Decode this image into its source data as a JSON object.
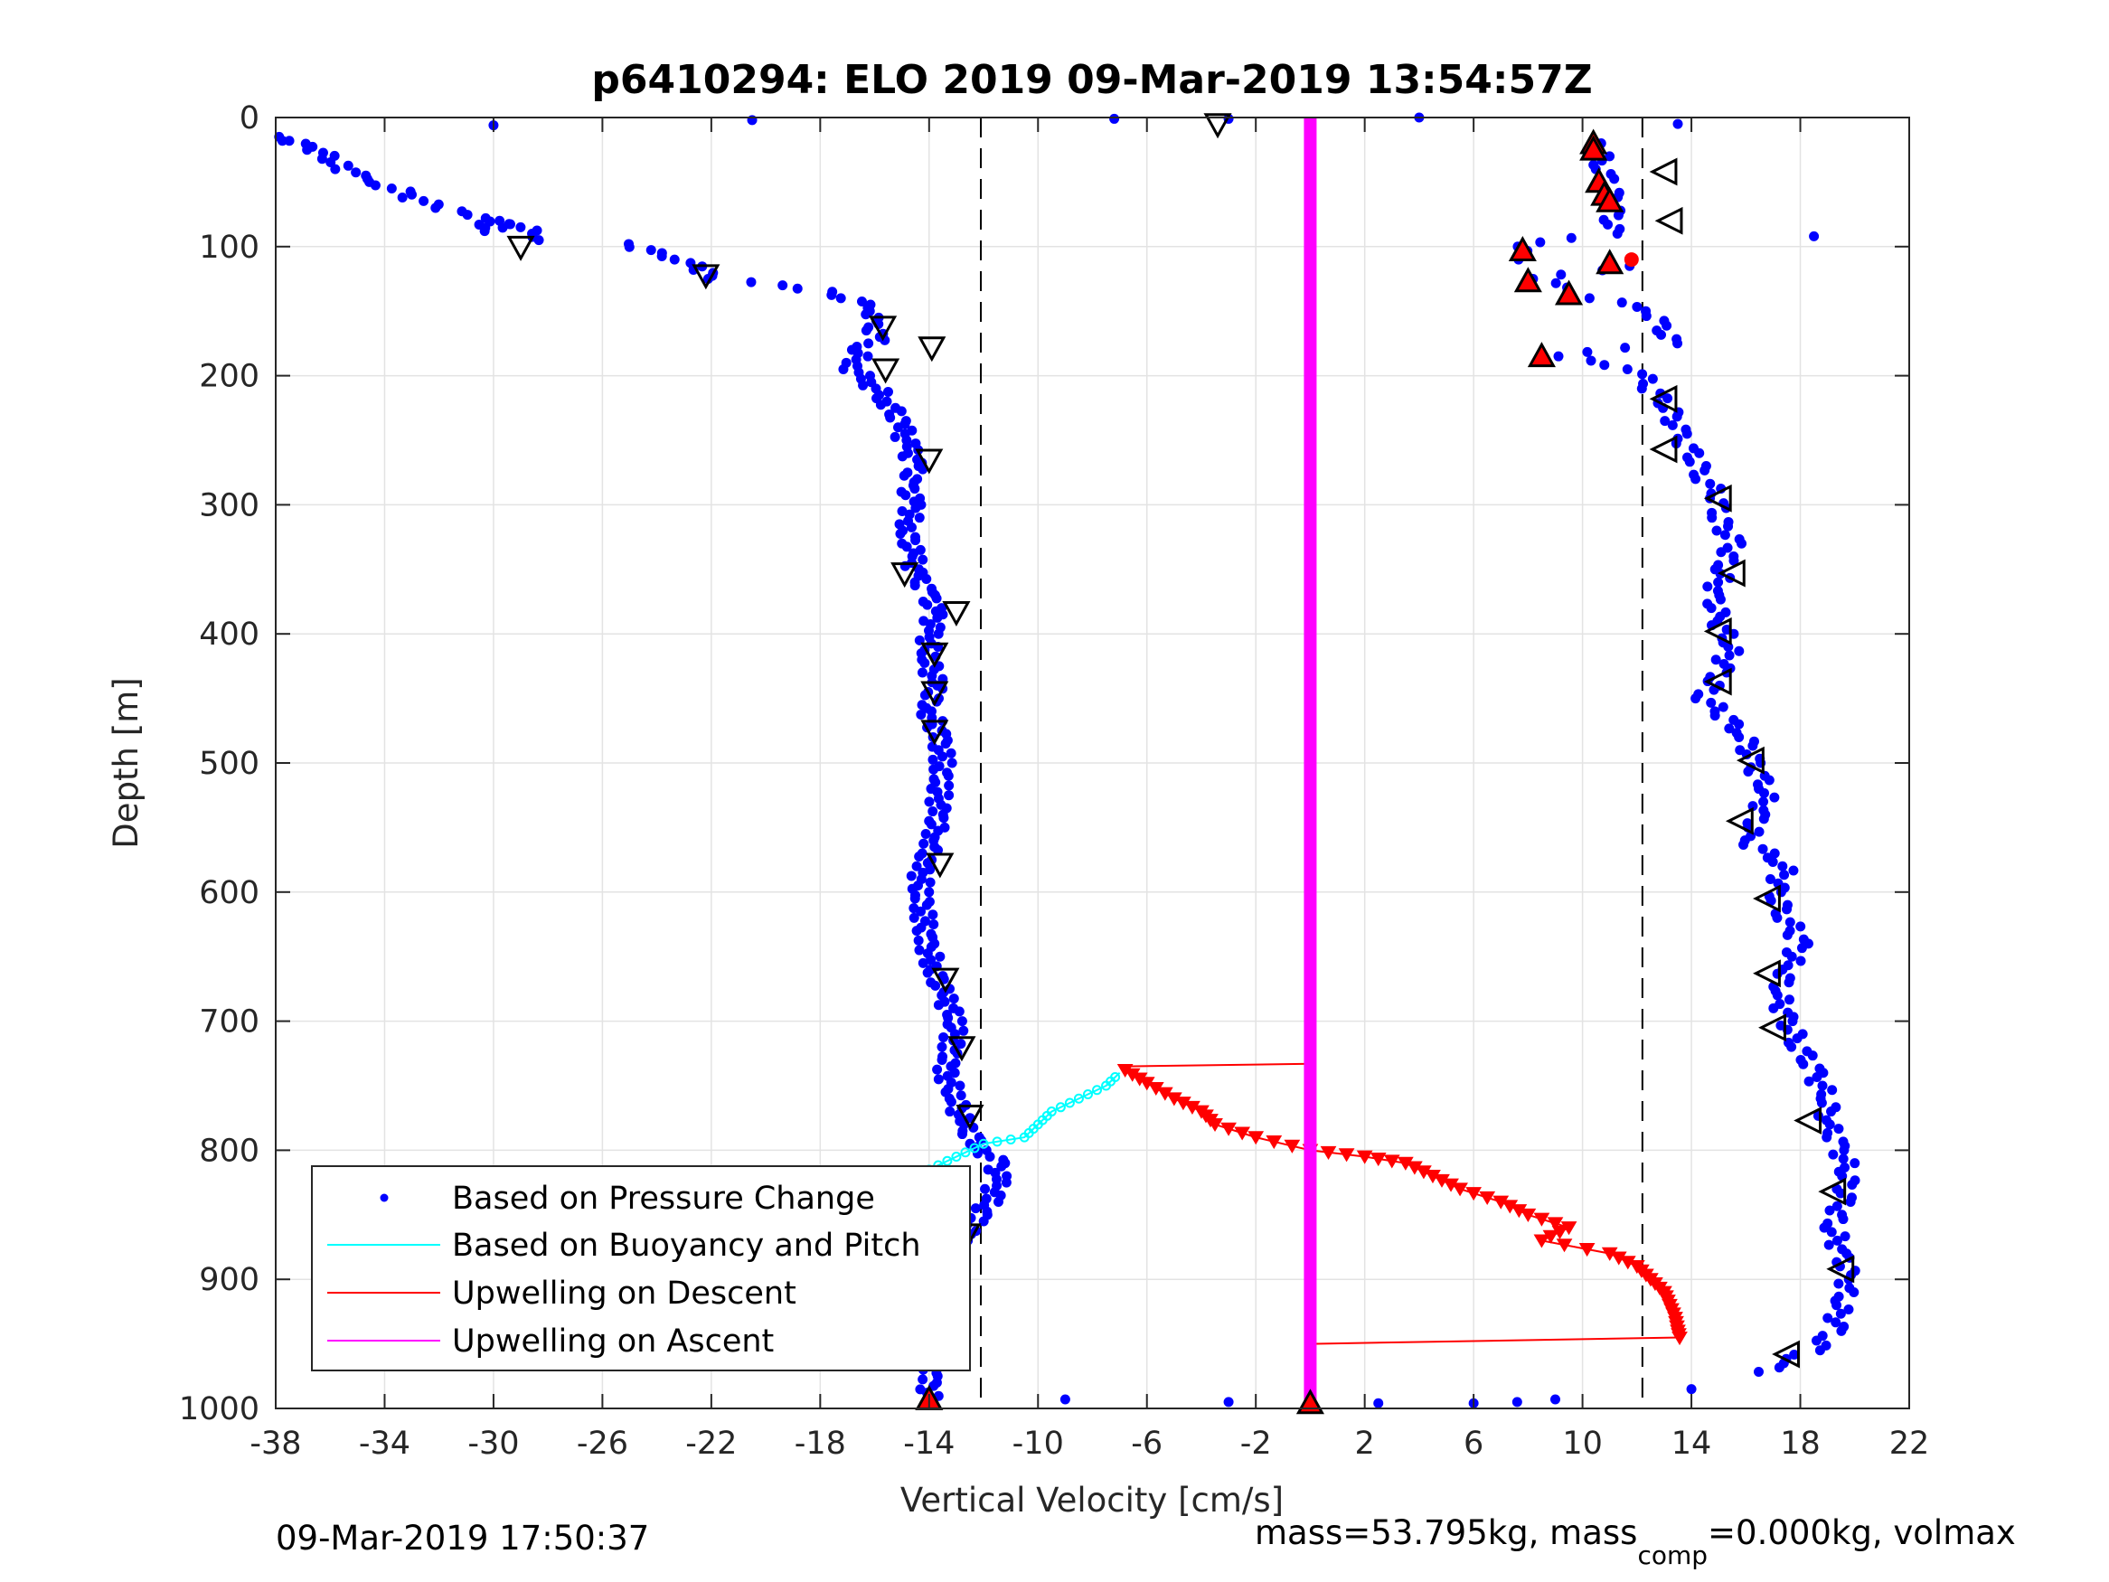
{
  "chart_data": {
    "type": "scatter",
    "title": "p6410294: ELO 2019 09-Mar-2019 13:54:57Z",
    "xlabel": "Vertical Velocity [cm/s]",
    "ylabel": "Depth [m]",
    "xlim": [
      -38,
      22
    ],
    "ylim": [
      0,
      1000
    ],
    "y_reversed": true,
    "grid": true,
    "x_ticks": [
      "-38",
      "-34",
      "-30",
      "-26",
      "-22",
      "-18",
      "-14",
      "-10",
      "-6",
      "-2",
      "2",
      "6",
      "10",
      "14",
      "18",
      "22"
    ],
    "y_ticks": [
      "0",
      "100",
      "200",
      "300",
      "400",
      "500",
      "600",
      "700",
      "800",
      "900",
      "1000"
    ],
    "legend_position": "bottom-left",
    "dashed_reference_lines_x": [
      -12.1,
      12.2
    ],
    "series": [
      {
        "name": "Based on Pressure Change",
        "color": "#0000ff",
        "style": "dots",
        "descent": [
          [
            -38,
            15
          ],
          [
            -37.5,
            18
          ],
          [
            -36.5,
            25
          ],
          [
            -36,
            32
          ],
          [
            -35.5,
            40
          ],
          [
            -35,
            45
          ],
          [
            -34.5,
            50
          ],
          [
            -33.5,
            55
          ],
          [
            -33,
            62
          ],
          [
            -32,
            70
          ],
          [
            -30.5,
            78
          ],
          [
            -30,
            88
          ],
          [
            -29.5,
            80
          ],
          [
            -29,
            85
          ],
          [
            -28,
            95
          ],
          [
            -25,
            98
          ],
          [
            -24,
            105
          ],
          [
            -23,
            110
          ],
          [
            -22.5,
            118
          ],
          [
            -21.8,
            125
          ],
          [
            -17.5,
            135
          ],
          [
            -17,
            140
          ],
          [
            -16.5,
            145
          ],
          [
            -16,
            150
          ],
          [
            -16.2,
            160
          ],
          [
            -15.8,
            170
          ],
          [
            -16.5,
            180
          ],
          [
            -16.8,
            195
          ],
          [
            -16.2,
            205
          ],
          [
            -15.5,
            220
          ],
          [
            -15,
            240
          ],
          [
            -14.8,
            255
          ],
          [
            -14.5,
            270
          ],
          [
            -14.8,
            285
          ],
          [
            -14.6,
            300
          ],
          [
            -14.8,
            320
          ],
          [
            -14.6,
            340
          ],
          [
            -14.5,
            355
          ],
          [
            -14,
            370
          ],
          [
            -13.8,
            385
          ],
          [
            -14,
            400
          ],
          [
            -14,
            420
          ],
          [
            -13.8,
            440
          ],
          [
            -14,
            460
          ],
          [
            -13.6,
            480
          ],
          [
            -13.5,
            500
          ],
          [
            -13.6,
            520
          ],
          [
            -13.7,
            540
          ],
          [
            -13.8,
            560
          ],
          [
            -14.3,
            580
          ],
          [
            -14.3,
            600
          ],
          [
            -14.2,
            620
          ],
          [
            -14.1,
            640
          ],
          [
            -13.8,
            660
          ],
          [
            -13.5,
            680
          ],
          [
            -13,
            700
          ],
          [
            -13.2,
            720
          ],
          [
            -13.4,
            740
          ],
          [
            -13,
            760
          ],
          [
            -12.8,
            780
          ],
          [
            -12,
            800
          ],
          [
            -11.5,
            810
          ],
          [
            -11.5,
            825
          ],
          [
            -11.8,
            840
          ],
          [
            -12.3,
            855
          ],
          [
            -12.8,
            870
          ],
          [
            -13.3,
            885
          ],
          [
            -13.6,
            900
          ],
          [
            -13.9,
            920
          ],
          [
            -14,
            940
          ],
          [
            -13.8,
            960
          ],
          [
            -14,
            980
          ],
          [
            -14,
            993
          ]
        ],
        "ascent": [
          [
            10.5,
            20
          ],
          [
            10.8,
            40
          ],
          [
            11,
            55
          ],
          [
            11.2,
            65
          ],
          [
            11,
            90
          ],
          [
            7.5,
            100
          ],
          [
            8,
            110
          ],
          [
            11.5,
            115
          ],
          [
            8.5,
            125
          ],
          [
            9.5,
            135
          ],
          [
            10.5,
            140
          ],
          [
            12.5,
            150
          ],
          [
            13,
            165
          ],
          [
            13.2,
            175
          ],
          [
            9,
            185
          ],
          [
            12,
            195
          ],
          [
            12.5,
            210
          ],
          [
            13.2,
            225
          ],
          [
            13.5,
            245
          ],
          [
            14,
            260
          ],
          [
            14.5,
            280
          ],
          [
            15,
            295
          ],
          [
            15,
            310
          ],
          [
            15.5,
            330
          ],
          [
            15.2,
            350
          ],
          [
            14.8,
            370
          ],
          [
            15,
            390
          ],
          [
            15.5,
            410
          ],
          [
            15,
            430
          ],
          [
            14.5,
            450
          ],
          [
            16,
            480
          ],
          [
            16.2,
            500
          ],
          [
            16.8,
            520
          ],
          [
            16.5,
            540
          ],
          [
            16,
            560
          ],
          [
            17.5,
            580
          ],
          [
            17,
            600
          ],
          [
            17.5,
            620
          ],
          [
            18,
            640
          ],
          [
            17.5,
            660
          ],
          [
            17.2,
            680
          ],
          [
            17.5,
            700
          ],
          [
            18,
            720
          ],
          [
            18.5,
            740
          ],
          [
            19,
            760
          ],
          [
            19,
            780
          ],
          [
            19.5,
            800
          ],
          [
            19.8,
            820
          ],
          [
            19.5,
            840
          ],
          [
            19.2,
            860
          ],
          [
            19.5,
            880
          ],
          [
            19.8,
            900
          ],
          [
            19.5,
            920
          ],
          [
            19.2,
            940
          ],
          [
            18.5,
            955
          ],
          [
            17.2,
            965
          ],
          [
            16.5,
            975
          ]
        ],
        "surface_points": [
          [
            -37.5,
            18
          ],
          [
            -30,
            6
          ],
          [
            -20.5,
            2
          ],
          [
            -7.2,
            1
          ],
          [
            -3,
            1
          ],
          [
            4,
            0
          ],
          [
            13.5,
            5
          ],
          [
            18.5,
            92
          ],
          [
            9,
            993
          ],
          [
            -9,
            993
          ],
          [
            -3,
            995
          ],
          [
            2.5,
            996
          ],
          [
            6,
            996
          ],
          [
            7.6,
            995
          ],
          [
            14,
            985
          ]
        ]
      },
      {
        "name": "Based on Buoyancy and Pitch",
        "color": "#00ffff",
        "style": "line-circles",
        "points": [
          [
            -28,
            945
          ],
          [
            -27.5,
            930
          ],
          [
            -27.3,
            910
          ],
          [
            -26,
            895
          ],
          [
            -25.5,
            880
          ],
          [
            -24,
            870
          ],
          [
            -22,
            860
          ],
          [
            -20,
            850
          ],
          [
            -18,
            840
          ],
          [
            -16,
            825
          ],
          [
            -14,
            815
          ],
          [
            -13,
            805
          ],
          [
            -12,
            795
          ],
          [
            -10.5,
            790
          ],
          [
            -10,
            780
          ],
          [
            -9.5,
            770
          ],
          [
            -8.5,
            760
          ],
          [
            -7.5,
            750
          ],
          [
            -7,
            740
          ]
        ]
      },
      {
        "name": "Upwelling on Descent",
        "color": "#ff0000",
        "style": "line-triangles",
        "points": [
          [
            -6.8,
            738
          ],
          [
            -6,
            748
          ],
          [
            -5,
            760
          ],
          [
            -4,
            770
          ],
          [
            -3.5,
            780
          ],
          [
            -2,
            790
          ],
          [
            0,
            800
          ],
          [
            2,
            805
          ],
          [
            3.5,
            810
          ],
          [
            4.5,
            820
          ],
          [
            5.5,
            830
          ],
          [
            7,
            840
          ],
          [
            8,
            850
          ],
          [
            9.5,
            860
          ],
          [
            8.5,
            870
          ],
          [
            11,
            880
          ],
          [
            12,
            890
          ],
          [
            12.5,
            900
          ],
          [
            13,
            910
          ],
          [
            13.2,
            920
          ],
          [
            13.4,
            930
          ],
          [
            13.5,
            940
          ],
          [
            13.6,
            948
          ]
        ],
        "connectors": [
          [
            -6.8,
            735,
            0,
            733
          ],
          [
            0,
            950,
            13.6,
            945
          ]
        ]
      },
      {
        "name": "Upwelling on Ascent",
        "color": "#ff00ff",
        "style": "thick-line",
        "x": 0,
        "y_range": [
          0,
          1000
        ]
      }
    ],
    "markers": {
      "open_triangles_descent": [
        [
          -3.4,
          5
        ],
        [
          -29,
          100
        ],
        [
          -22.2,
          122
        ],
        [
          -15.7,
          162
        ],
        [
          -13.9,
          178
        ],
        [
          -15.6,
          195
        ],
        [
          -14,
          265
        ],
        [
          -14.9,
          353
        ],
        [
          -13,
          383
        ],
        [
          -13.8,
          415
        ],
        [
          -13.8,
          445
        ],
        [
          -13.8,
          475
        ],
        [
          -13.6,
          578
        ],
        [
          -13.4,
          667
        ],
        [
          -12.8,
          720
        ],
        [
          -12.5,
          773
        ],
        [
          -12.6,
          865
        ]
      ],
      "open_triangles_ascent": [
        [
          13,
          42
        ],
        [
          13.2,
          80
        ],
        [
          13,
          218
        ],
        [
          13,
          257
        ],
        [
          15,
          295
        ],
        [
          15.5,
          353
        ],
        [
          15,
          398
        ],
        [
          15,
          437
        ],
        [
          16.2,
          498
        ],
        [
          15.8,
          545
        ],
        [
          16.8,
          605
        ],
        [
          16.8,
          663
        ],
        [
          17,
          705
        ],
        [
          18.3,
          777
        ],
        [
          19.2,
          832
        ],
        [
          19.5,
          892
        ],
        [
          17.5,
          958
        ]
      ],
      "filled_red_triangles": [
        [
          10.4,
          20
        ],
        [
          10.4,
          25
        ],
        [
          10.6,
          50
        ],
        [
          10.8,
          60
        ],
        [
          11,
          65
        ],
        [
          7.8,
          103
        ],
        [
          11,
          113
        ],
        [
          8,
          127
        ],
        [
          9.5,
          137
        ],
        [
          8.5,
          185
        ],
        [
          -14,
          993
        ],
        [
          0,
          996
        ]
      ],
      "red_dot": [
        11.8,
        110
      ]
    }
  },
  "footer": {
    "timestamp": "09-Mar-2019 17:50:37",
    "mass_prefix": "mass=53.795kg, mass",
    "mass_subscript": "comp",
    "mass_suffix": "=0.000kg, volmax"
  }
}
